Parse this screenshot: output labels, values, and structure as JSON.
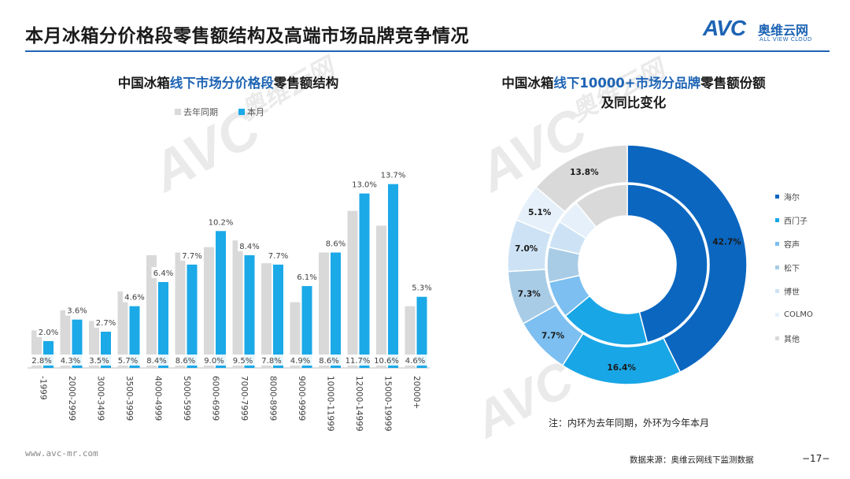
{
  "header": {
    "title": "本月冰箱分价格段零售额结构及高端市场品牌竞争情况",
    "brand_logo": "AVC",
    "brand_cn": "奥维云网",
    "brand_en": "ALL VIEW CLOUD"
  },
  "watermark": {
    "logo": "AVC",
    "cn": "奥维云网",
    "en": "ALL VIEW CLOUD"
  },
  "left_chart_title": {
    "a": "中国冰箱",
    "b": "线下市场分价格段",
    "c": "零售额结构"
  },
  "right_chart_title": {
    "a": "中国冰箱",
    "b": "线下10000+市场分品牌",
    "c": "零售额份额",
    "line2": "及同比变化"
  },
  "note": "注：内环为去年同期，外环为今年本月",
  "footer": {
    "site": "www.avc-mr.com",
    "source": "数据来源：奥维云网线下监测数据",
    "page": "−17−"
  },
  "colors": {
    "last_year": "#d9d9d9",
    "this_month": "#1ba9e8",
    "accent": "#1e64b4",
    "brands": [
      "#0b66c0",
      "#19a6e6",
      "#7cbff0",
      "#a9cce6",
      "#cde3f5",
      "#e5f0fa",
      "#d9d9d9"
    ]
  },
  "chart_data": [
    {
      "type": "bar",
      "title": "中国冰箱线下市场分价格段零售额结构",
      "categories": [
        "-1999",
        "2000-2999",
        "3000-3499",
        "3500-3999",
        "4000-4999",
        "5000-5999",
        "6000-6999",
        "7000-7999",
        "8000-8999",
        "9000-9999",
        "10000-11999",
        "12000-14999",
        "15000-19999",
        "20000+"
      ],
      "series": [
        {
          "name": "去年同期",
          "values": [
            2.8,
            4.3,
            3.5,
            5.7,
            8.4,
            8.6,
            9.0,
            9.5,
            7.8,
            4.9,
            8.6,
            11.7,
            10.6,
            4.6
          ],
          "labels": [
            "2.8%",
            "4.3%",
            "3.5%",
            "5.7%",
            "8.4%",
            "8.6%",
            "9.0%",
            "9.5%",
            "7.8%",
            "4.9%",
            "8.6%",
            "11.7%",
            "10.6%",
            "4.6%"
          ]
        },
        {
          "name": "本月",
          "values": [
            2.0,
            3.6,
            2.7,
            4.6,
            6.4,
            7.7,
            10.2,
            8.4,
            7.7,
            6.1,
            8.6,
            13.0,
            13.7,
            5.3
          ],
          "labels": [
            "2.0%",
            "3.6%",
            "2.7%",
            "4.6%",
            "6.4%",
            "7.7%",
            "10.2%",
            "8.4%",
            "7.7%",
            "6.1%",
            "8.6%",
            "13.0%",
            "13.7%",
            "5.3%"
          ]
        }
      ],
      "ylim": [
        0,
        15.5
      ],
      "legend": "top-left"
    },
    {
      "type": "pie",
      "title": "中国冰箱线下10000+市场分品牌零售额份额及同比变化",
      "categories": [
        "海尔",
        "西门子",
        "容声",
        "松下",
        "博世",
        "COLMO",
        "其他"
      ],
      "outer": {
        "name": "本月",
        "values": [
          42.7,
          16.4,
          7.7,
          7.3,
          7.0,
          5.1,
          13.8
        ],
        "labels": [
          "42.7%",
          "16.4%",
          "7.7%",
          "7.3%",
          "7.0%",
          "5.1%",
          "13.8%"
        ]
      },
      "inner": {
        "name": "去年同期",
        "values": [
          46.0,
          18.0,
          7.5,
          7.0,
          5.5,
          5.0,
          11.0
        ]
      },
      "legend": "right"
    }
  ]
}
